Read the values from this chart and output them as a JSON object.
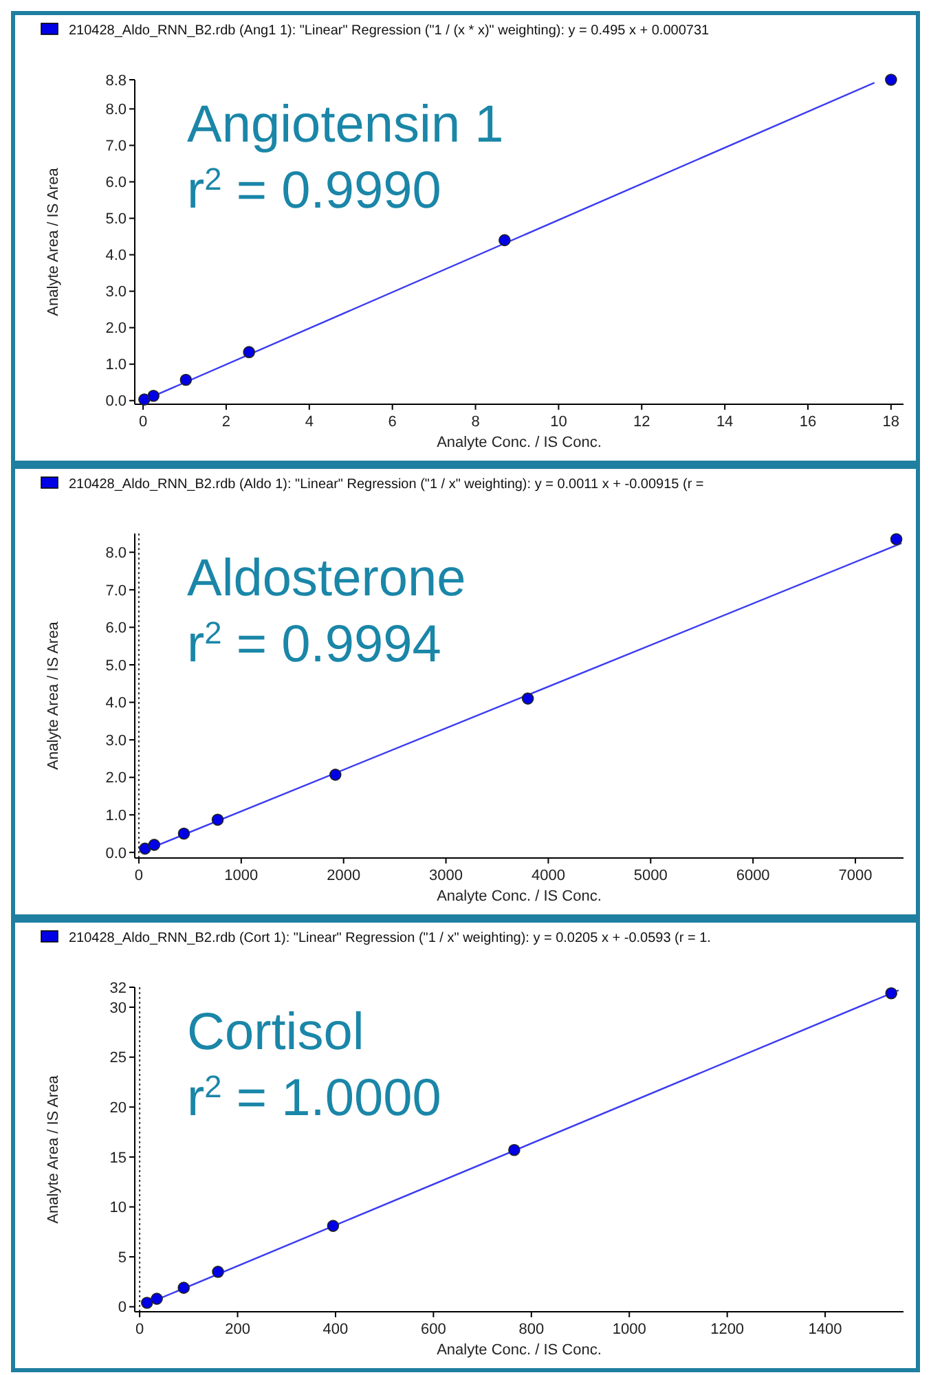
{
  "chart_data": [
    {
      "type": "scatter",
      "title": "210428_Aldo_RNN_B2.rdb (Ang1 1): \"Linear\" Regression (\"1  / (x * x)\" weighting): y = 0.495 x + 0.000731",
      "xlabel": "Analyte Conc. / IS Conc.",
      "ylabel": "Analyte Area / IS Area",
      "annotations": [
        "Angiotensin 1",
        "r$^{2}$ = 0.9990"
      ],
      "marker": "circle",
      "grid": false,
      "xlim": [
        -0.2,
        18.3
      ],
      "ylim": [
        -0.1,
        8.8
      ],
      "xticks": [
        0,
        2,
        4,
        6,
        8,
        10,
        12,
        14,
        16,
        18
      ],
      "yticks": [
        {
          "value": 0,
          "label": "0.0"
        },
        {
          "value": 1,
          "label": "1.0"
        },
        {
          "value": 2,
          "label": "2.0"
        },
        {
          "value": 3,
          "label": "3.0"
        },
        {
          "value": 4,
          "label": "4.0"
        },
        {
          "value": 5,
          "label": "5.0"
        },
        {
          "value": 6,
          "label": "6.0"
        },
        {
          "value": 7,
          "label": "7.0"
        },
        {
          "value": 8,
          "label": "8.0"
        },
        8.8
      ],
      "series": [
        {
          "type": "line",
          "marker": "none",
          "color": "#3b3bf5",
          "x": [
            0,
            17.6
          ],
          "values": [
            0.0,
            8.72
          ]
        },
        {
          "color": "#0000e6",
          "x": [
            0.03,
            0.25,
            1.03,
            2.55,
            8.7,
            18.0
          ],
          "values": [
            0.03,
            0.13,
            0.57,
            1.33,
            4.4,
            8.8
          ]
        }
      ]
    },
    {
      "type": "scatter",
      "title": "210428_Aldo_RNN_B2.rdb (Aldo 1): \"Linear\" Regression (\"1 / x\" weighting): y = 0.0011 x + -0.00915 (r =",
      "xlabel": "Analyte Conc. / IS Conc.",
      "ylabel": "Analyte Area / IS Area",
      "annotations": [
        "Aldosterone",
        "r$^{2}$ = 0.9994"
      ],
      "marker": "circle",
      "grid": false,
      "xlim": [
        -40,
        7470
      ],
      "ylim": [
        -0.15,
        8.5
      ],
      "xticks": [
        0,
        1000,
        2000,
        3000,
        4000,
        5000,
        6000,
        7000
      ],
      "yticks": [
        {
          "value": 0,
          "label": "0.0"
        },
        {
          "value": 1,
          "label": "1.0"
        },
        {
          "value": 2,
          "label": "2.0"
        },
        {
          "value": 3,
          "label": "3.0"
        },
        {
          "value": 4,
          "label": "4.0"
        },
        {
          "value": 5,
          "label": "5.0"
        },
        {
          "value": 6,
          "label": "6.0"
        },
        {
          "value": 7,
          "label": "7.0"
        },
        {
          "value": 8,
          "label": "8.0"
        }
      ],
      "ref_lines": [
        {
          "axis": "x",
          "value": 0,
          "label": null,
          "line_style": "dotted",
          "color": "#333333"
        }
      ],
      "series": [
        {
          "type": "line",
          "marker": "none",
          "color": "#3b3bf5",
          "x": [
            30,
            7450
          ],
          "values": [
            0.02,
            8.24
          ]
        },
        {
          "color": "#0000e6",
          "x": [
            60,
            150,
            440,
            770,
            1920,
            3800,
            7400
          ],
          "values": [
            0.1,
            0.2,
            0.5,
            0.87,
            2.07,
            4.1,
            8.35
          ]
        }
      ]
    },
    {
      "type": "scatter",
      "title": "210428_Aldo_RNN_B2.rdb (Cort 1): \"Linear\" Regression (\"1 / x\" weighting): y = 0.0205 x + -0.0593 (r = 1.",
      "xlabel": "Analyte Conc. / IS Conc.",
      "ylabel": "Analyte Area / IS Area",
      "annotations": [
        "Cortisol",
        "r$^{2}$ = 1.0000"
      ],
      "marker": "circle",
      "grid": false,
      "xlim": [
        -10,
        1560
      ],
      "ylim": [
        -0.5,
        32
      ],
      "xticks": [
        0,
        200,
        400,
        600,
        800,
        1000,
        1200,
        1400
      ],
      "yticks": [
        0,
        5,
        10,
        15,
        20,
        25,
        30,
        32
      ],
      "ref_lines": [
        {
          "axis": "x",
          "value": 0,
          "label": null,
          "line_style": "dotted",
          "color": "#333333"
        }
      ],
      "series": [
        {
          "type": "line",
          "marker": "none",
          "color": "#3b3bf5",
          "x": [
            10,
            1550
          ],
          "values": [
            0.2,
            31.7
          ]
        },
        {
          "color": "#0000e6",
          "x": [
            15,
            35,
            90,
            160,
            395,
            765,
            1535
          ],
          "values": [
            0.4,
            0.8,
            1.9,
            3.5,
            8.1,
            15.7,
            31.4
          ]
        }
      ]
    }
  ]
}
